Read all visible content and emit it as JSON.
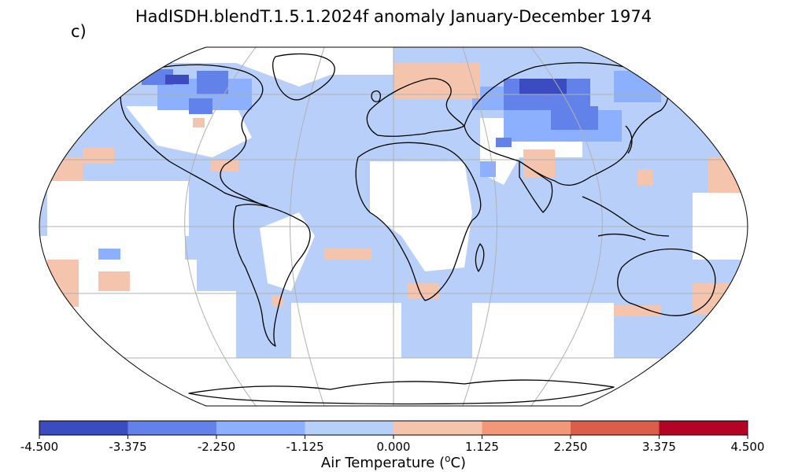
{
  "title": "HadISDH.blendT.1.5.1.2024f anomaly January-December 1974",
  "panel_label": "c)",
  "colorbar": {
    "label_prefix": "Air Temperature (",
    "label_sup": "o",
    "label_suffix": "C)",
    "ticks": [
      "-4.500",
      "-3.375",
      "-2.250",
      "-1.125",
      "0.000",
      "1.125",
      "2.250",
      "3.375",
      "4.500"
    ],
    "colors": [
      "#3b4cc0",
      "#6282ea",
      "#8caffe",
      "#b8d0f9",
      "#f5c4ac",
      "#f39778",
      "#dc5d4a",
      "#b40426"
    ]
  },
  "map": {
    "projection": "Robinson",
    "gridlines": true,
    "ocean_color": "#b8d0f9",
    "coast_color": "#000000"
  }
}
